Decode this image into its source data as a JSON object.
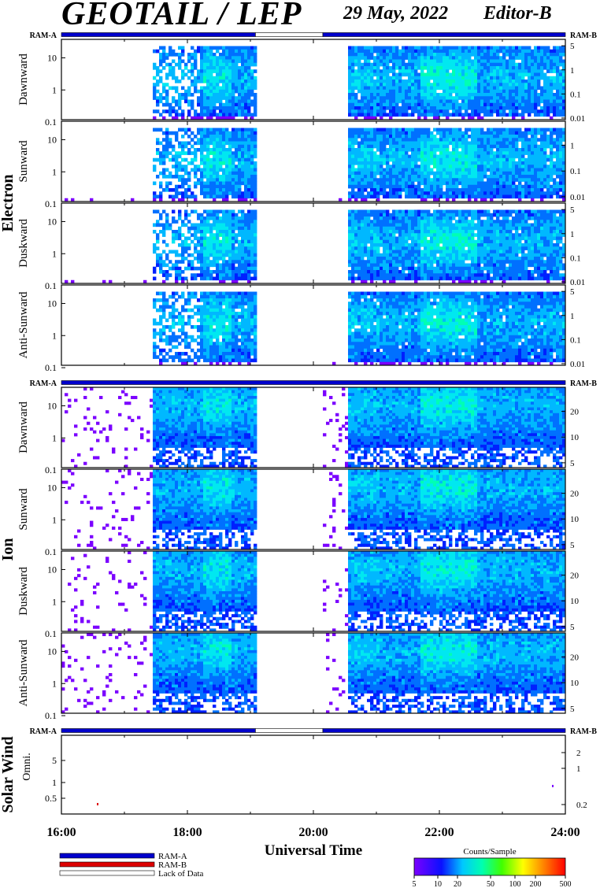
{
  "header": {
    "title": "GEOTAIL / LEP",
    "date": "29 May, 2022",
    "editor": "Editor-B"
  },
  "colors": {
    "ram_a": "#0000cc",
    "ram_b": "#dd0000",
    "lack_of_data": "#ffffff",
    "spectrogram_low": "#7b00ff",
    "spectrogram_high": "#ff0000"
  },
  "chart_data": [
    {
      "type": "heatmap",
      "group": "Electron",
      "ram_left": "RAM-A",
      "ram_right": "RAM-B",
      "availability": [
        {
          "start": 16.0,
          "end": 19.08,
          "state": "RAM-A"
        },
        {
          "start": 19.08,
          "end": 20.15,
          "state": "Lack of Data"
        },
        {
          "start": 20.15,
          "end": 24.0,
          "state": "RAM-A"
        }
      ],
      "panels": [
        {
          "name": "Dawnward",
          "left_ticks": [
            "10",
            "1",
            "0.1"
          ],
          "right_ticks": [
            "5",
            "1",
            "0.1",
            "0.01"
          ]
        },
        {
          "name": "Sunward",
          "left_ticks": [
            "10",
            "1",
            "0.1"
          ],
          "right_ticks": [
            "1",
            "0.1",
            "0.01"
          ]
        },
        {
          "name": "Duskward",
          "left_ticks": [
            "10",
            "1",
            "0.1"
          ],
          "right_ticks": [
            "5",
            "1",
            "0.1",
            "0.01"
          ]
        },
        {
          "name": "Anti-Sunward",
          "left_ticks": [
            "10",
            "1",
            "0.1"
          ],
          "right_ticks": [
            "5",
            "1",
            "0.1",
            "0.01"
          ]
        }
      ]
    },
    {
      "type": "heatmap",
      "group": "Ion",
      "ram_left": "RAM-A",
      "ram_right": "RAM-B",
      "availability": [
        {
          "start": 16.0,
          "end": 24.0,
          "state": "RAM-A"
        }
      ],
      "panels": [
        {
          "name": "Dawnward",
          "left_ticks": [
            "10",
            "1",
            "0.1"
          ],
          "right_ticks": [
            "20",
            "10",
            "5"
          ]
        },
        {
          "name": "Sunward",
          "left_ticks": [
            "10",
            "1",
            "0.1"
          ],
          "right_ticks": [
            "20",
            "10",
            "5"
          ]
        },
        {
          "name": "Duskward",
          "left_ticks": [
            "10",
            "1",
            "0.1"
          ],
          "right_ticks": [
            "20",
            "10",
            "5"
          ]
        },
        {
          "name": "Anti-Sunward",
          "left_ticks": [
            "10",
            "1",
            "0.1"
          ],
          "right_ticks": [
            "20",
            "10",
            "5"
          ]
        }
      ]
    },
    {
      "type": "heatmap",
      "group": "Solar Wind",
      "ram_left": "RAM-A",
      "ram_right": "RAM-B",
      "availability": [
        {
          "start": 16.0,
          "end": 19.08,
          "state": "RAM-A"
        },
        {
          "start": 19.08,
          "end": 20.15,
          "state": "Lack of Data"
        },
        {
          "start": 20.15,
          "end": 24.0,
          "state": "RAM-A"
        }
      ],
      "panels": [
        {
          "name": "Omni.",
          "left_ticks": [
            "5",
            "1",
            "0.5"
          ],
          "right_ticks": [
            "2",
            "1",
            "0.2"
          ]
        }
      ]
    }
  ],
  "x_axis": {
    "label": "Universal Time",
    "ticks": [
      "16:00",
      "18:00",
      "20:00",
      "22:00",
      "24:00"
    ],
    "range": [
      16,
      24
    ]
  },
  "legend": {
    "items": [
      "RAM-A",
      "RAM-B",
      "Lack of Data"
    ]
  },
  "colorbar": {
    "title": "Counts/Sample",
    "ticks": [
      "5",
      "10",
      "20",
      "50",
      "100",
      "200",
      "500"
    ]
  }
}
